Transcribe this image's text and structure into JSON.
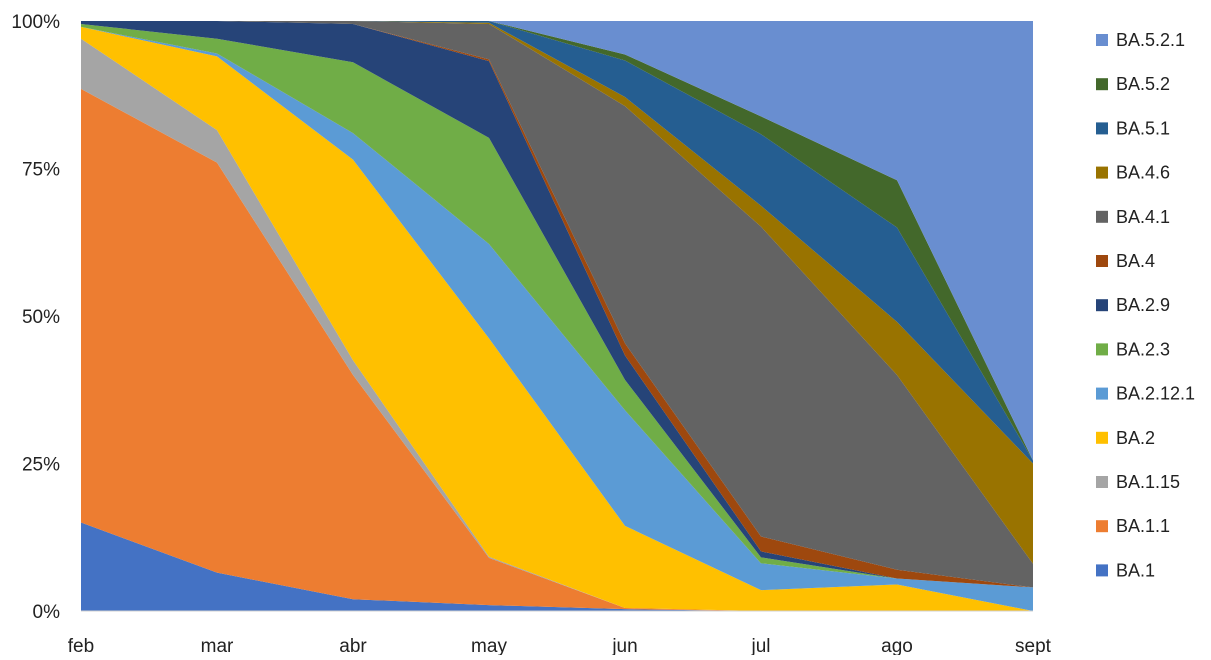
{
  "chart_data": {
    "type": "area",
    "stacked": "percent",
    "title": "",
    "xlabel": "",
    "ylabel": "",
    "ylim": [
      0,
      100
    ],
    "yticks": [
      "0%",
      "25%",
      "50%",
      "75%",
      "100%"
    ],
    "grid": false,
    "legend_position": "right",
    "categories": [
      "feb",
      "mar",
      "abr",
      "may",
      "jun",
      "jul",
      "ago",
      "sept"
    ],
    "series": [
      {
        "name": "BA.1",
        "color": "#4472C4",
        "values": [
          15,
          6.5,
          2,
          1,
          0.3,
          0,
          0,
          0
        ]
      },
      {
        "name": "BA.1.1",
        "color": "#ED7D31",
        "values": [
          73.5,
          69.5,
          38,
          8,
          0.2,
          0,
          0,
          0
        ]
      },
      {
        "name": "BA.1.15",
        "color": "#A5A5A5",
        "values": [
          8.5,
          5.5,
          2.5,
          0.2,
          0,
          0,
          0,
          0
        ]
      },
      {
        "name": "BA.2",
        "color": "#FFC000",
        "values": [
          2,
          12.5,
          34,
          37,
          13.5,
          3.5,
          4.5,
          0
        ]
      },
      {
        "name": "BA.2.12.1",
        "color": "#5B9BD5",
        "values": [
          0,
          0.5,
          4.5,
          16,
          19,
          4.5,
          1,
          4
        ]
      },
      {
        "name": "BA.2.3",
        "color": "#70AD47",
        "values": [
          0.5,
          2.5,
          12,
          18,
          5,
          1,
          0,
          0
        ]
      },
      {
        "name": "BA.2.9",
        "color": "#264478",
        "values": [
          0.5,
          3,
          6.5,
          13,
          4,
          1,
          0,
          0
        ]
      },
      {
        "name": "BA.4",
        "color": "#9E480E",
        "values": [
          0,
          0,
          0,
          0.3,
          2,
          2.5,
          1.5,
          0
        ]
      },
      {
        "name": "BA.4.1",
        "color": "#636363",
        "values": [
          0,
          0,
          0.5,
          6,
          39,
          52,
          33,
          4
        ]
      },
      {
        "name": "BA.4.6",
        "color": "#997300",
        "values": [
          0,
          0,
          0,
          0.2,
          1.5,
          3.5,
          9,
          17
        ]
      },
      {
        "name": "BA.5.1",
        "color": "#255E91",
        "values": [
          0,
          0,
          0,
          0.3,
          6,
          12,
          16,
          0.5
        ]
      },
      {
        "name": "BA.5.2",
        "color": "#43682B",
        "values": [
          0,
          0,
          0,
          0,
          1,
          3,
          8,
          0
        ]
      },
      {
        "name": "BA.5.2.1",
        "color": "#698ED0",
        "values": [
          0,
          0,
          0,
          0,
          5.5,
          16,
          27,
          74.5
        ]
      }
    ]
  }
}
